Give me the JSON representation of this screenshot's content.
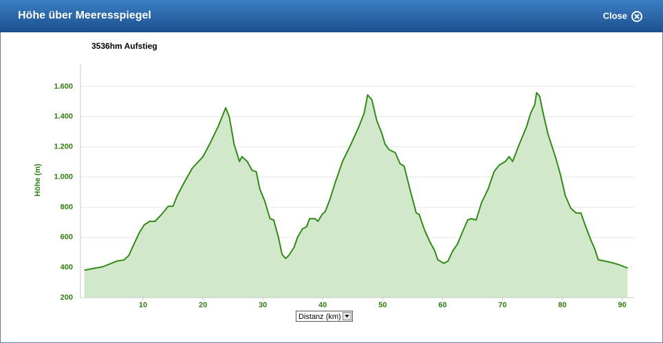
{
  "header": {
    "title": "Höhe über Meeresspiegel",
    "close": "Close"
  },
  "controls": {
    "x_selector": "Distanz (km)"
  },
  "chart_data": {
    "type": "area",
    "subtitle": "3536hm Aufstieg",
    "ylabel": "Höhe (m)",
    "color": "#2e8b14",
    "fill": "#d2e8cb",
    "grid": true,
    "xlim": [
      0,
      92
    ],
    "ylim": [
      200,
      1750
    ],
    "xticks": [
      10,
      20,
      30,
      40,
      50,
      60,
      70,
      80,
      90
    ],
    "yticks": [
      200,
      400,
      600,
      800,
      {
        "value": 1000,
        "label": "1.000"
      },
      {
        "value": 1200,
        "label": "1.200"
      },
      {
        "value": 1400,
        "label": "1.400"
      },
      {
        "value": 1600,
        "label": "1.600"
      }
    ],
    "x": [
      0.2,
      3.3,
      5.6,
      6.8,
      7.6,
      8.5,
      9.4,
      10.2,
      11.1,
      12,
      13.1,
      14.2,
      15,
      15.7,
      16.9,
      18.2,
      20,
      21.1,
      22.6,
      23.8,
      24.4,
      25.2,
      26.1,
      26.5,
      27.4,
      28.2,
      28.9,
      29.5,
      30.3,
      31.2,
      31.8,
      32.6,
      33.2,
      33.8,
      34.3,
      35.2,
      35.8,
      36.6,
      37.3,
      37.8,
      38.7,
      39.2,
      39.9,
      40.4,
      41.2,
      42.1,
      43.3,
      44.7,
      46,
      46.9,
      47.5,
      48.2,
      49,
      49.9,
      50.4,
      51.1,
      52.1,
      52.9,
      53.6,
      54.4,
      55,
      55.6,
      56.1,
      57,
      57.9,
      58.7,
      59.2,
      60.2,
      60.9,
      61.7,
      62.5,
      63.3,
      64.2,
      64.8,
      65.6,
      66.5,
      67.6,
      68.6,
      69,
      69.5,
      70.5,
      71.1,
      71.7,
      72.8,
      74,
      74.7,
      75.4,
      75.7,
      76.2,
      76.8,
      77.6,
      78.9,
      79.7,
      80.5,
      81.4,
      82.3,
      83.1,
      83.9,
      84.8,
      85.4,
      86,
      87.1,
      88.2,
      89.4,
      90.9
    ],
    "values": [
      382,
      405,
      442,
      450,
      478,
      556,
      633,
      683,
      706,
      706,
      752,
      806,
      806,
      875,
      966,
      1057,
      1135,
      1217,
      1340,
      1459,
      1399,
      1217,
      1103,
      1135,
      1103,
      1044,
      1035,
      920,
      843,
      724,
      715,
      601,
      487,
      460,
      478,
      533,
      601,
      656,
      670,
      724,
      724,
      706,
      752,
      770,
      852,
      966,
      1103,
      1217,
      1331,
      1422,
      1545,
      1513,
      1376,
      1285,
      1217,
      1180,
      1162,
      1089,
      1071,
      943,
      852,
      761,
      752,
      647,
      569,
      510,
      451,
      428,
      442,
      510,
      556,
      633,
      715,
      724,
      715,
      829,
      920,
      1035,
      1057,
      1080,
      1103,
      1135,
      1103,
      1217,
      1331,
      1422,
      1481,
      1559,
      1536,
      1422,
      1285,
      1126,
      1012,
      875,
      793,
      761,
      761,
      670,
      578,
      524,
      451,
      442,
      433,
      419,
      396
    ]
  }
}
